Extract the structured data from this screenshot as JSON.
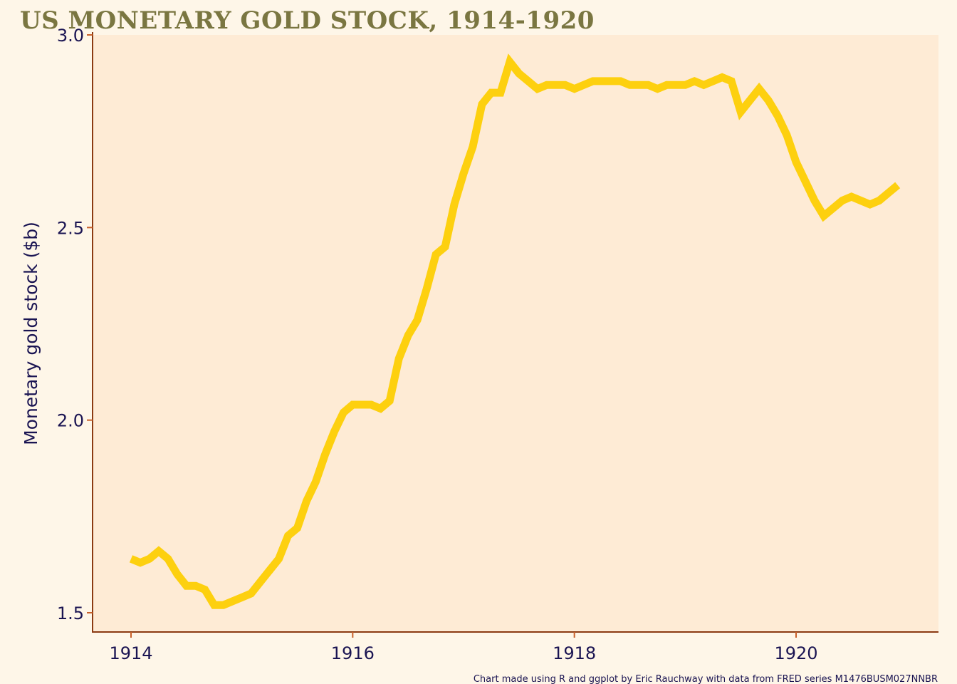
{
  "chart_data": {
    "type": "line",
    "title": "US MONETARY GOLD STOCK, 1914-1920",
    "xlabel": "",
    "ylabel": "Monetary gold stock ($b)",
    "caption": "Chart made using R and ggplot by Eric Rauchway with data from FRED series M1476BUSM027NNBR",
    "xlim": [
      1913.65,
      1921.25
    ],
    "ylim": [
      1.45,
      3.0
    ],
    "x_ticks": [
      1914,
      1916,
      1918,
      1920
    ],
    "x_tick_labels": [
      "1914",
      "1916",
      "1918",
      "1920"
    ],
    "y_ticks": [
      1.5,
      2.0,
      2.5,
      3.0
    ],
    "y_tick_labels": [
      "1.5",
      "2.0",
      "2.5",
      "3.0"
    ],
    "grid": false,
    "legend": "none",
    "colors": {
      "background": "#FEF6E8",
      "panel": "#FEEBD5",
      "line": "#FDD00F",
      "axis": "#8B3A12",
      "tick": "#C8602A",
      "text": "#1A1452",
      "title": "#7A7641"
    },
    "series": [
      {
        "name": "Monetary gold stock",
        "start_year": 1914,
        "frequency": "monthly",
        "values": [
          1.64,
          1.63,
          1.64,
          1.66,
          1.64,
          1.6,
          1.57,
          1.57,
          1.56,
          1.52,
          1.52,
          1.53,
          1.54,
          1.55,
          1.58,
          1.61,
          1.64,
          1.7,
          1.72,
          1.79,
          1.84,
          1.91,
          1.97,
          2.02,
          2.04,
          2.04,
          2.04,
          2.03,
          2.05,
          2.16,
          2.22,
          2.26,
          2.34,
          2.43,
          2.45,
          2.56,
          2.64,
          2.71,
          2.82,
          2.85,
          2.85,
          2.93,
          2.9,
          2.88,
          2.86,
          2.87,
          2.87,
          2.87,
          2.86,
          2.87,
          2.88,
          2.88,
          2.88,
          2.88,
          2.87,
          2.87,
          2.87,
          2.86,
          2.87,
          2.87,
          2.87,
          2.88,
          2.87,
          2.88,
          2.89,
          2.88,
          2.8,
          2.83,
          2.86,
          2.83,
          2.79,
          2.74,
          2.67,
          2.62,
          2.57,
          2.53,
          2.55,
          2.57,
          2.58,
          2.57,
          2.56,
          2.57,
          2.59,
          2.61
        ]
      }
    ]
  }
}
